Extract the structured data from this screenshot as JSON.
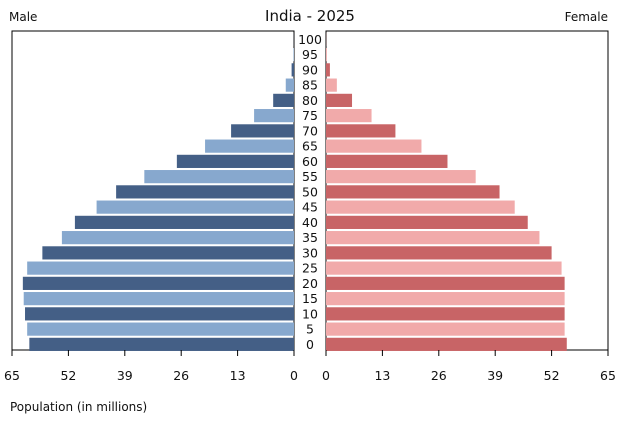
{
  "chart_data": {
    "type": "bar",
    "title": "India - 2025",
    "left_label": "Male",
    "right_label": "Female",
    "xlabel": "Population (in millions)",
    "xlim": [
      0,
      65
    ],
    "x_ticks": [
      0,
      13,
      26,
      39,
      52,
      65
    ],
    "grid": false,
    "categories": [
      "0",
      "5",
      "10",
      "15",
      "20",
      "25",
      "30",
      "35",
      "40",
      "45",
      "50",
      "55",
      "60",
      "65",
      "70",
      "75",
      "80",
      "85",
      "90",
      "95",
      "100"
    ],
    "series": [
      {
        "name": "Male",
        "values": [
          61.0,
          61.5,
          62.0,
          62.3,
          62.5,
          61.5,
          58.0,
          53.5,
          50.5,
          45.5,
          41.0,
          34.5,
          27.0,
          20.5,
          14.5,
          9.2,
          4.8,
          1.9,
          0.55,
          0.12,
          0.02
        ],
        "colors": [
          "#445f86",
          "#87a8ce"
        ]
      },
      {
        "name": "Female",
        "values": [
          55.5,
          55.0,
          55.0,
          55.0,
          55.0,
          54.3,
          52.0,
          49.2,
          46.5,
          43.5,
          40.0,
          34.5,
          28.0,
          22.0,
          16.0,
          10.5,
          6.0,
          2.5,
          0.9,
          0.2,
          0.03
        ],
        "colors": [
          "#c86466",
          "#f1aaaa"
        ]
      }
    ]
  }
}
